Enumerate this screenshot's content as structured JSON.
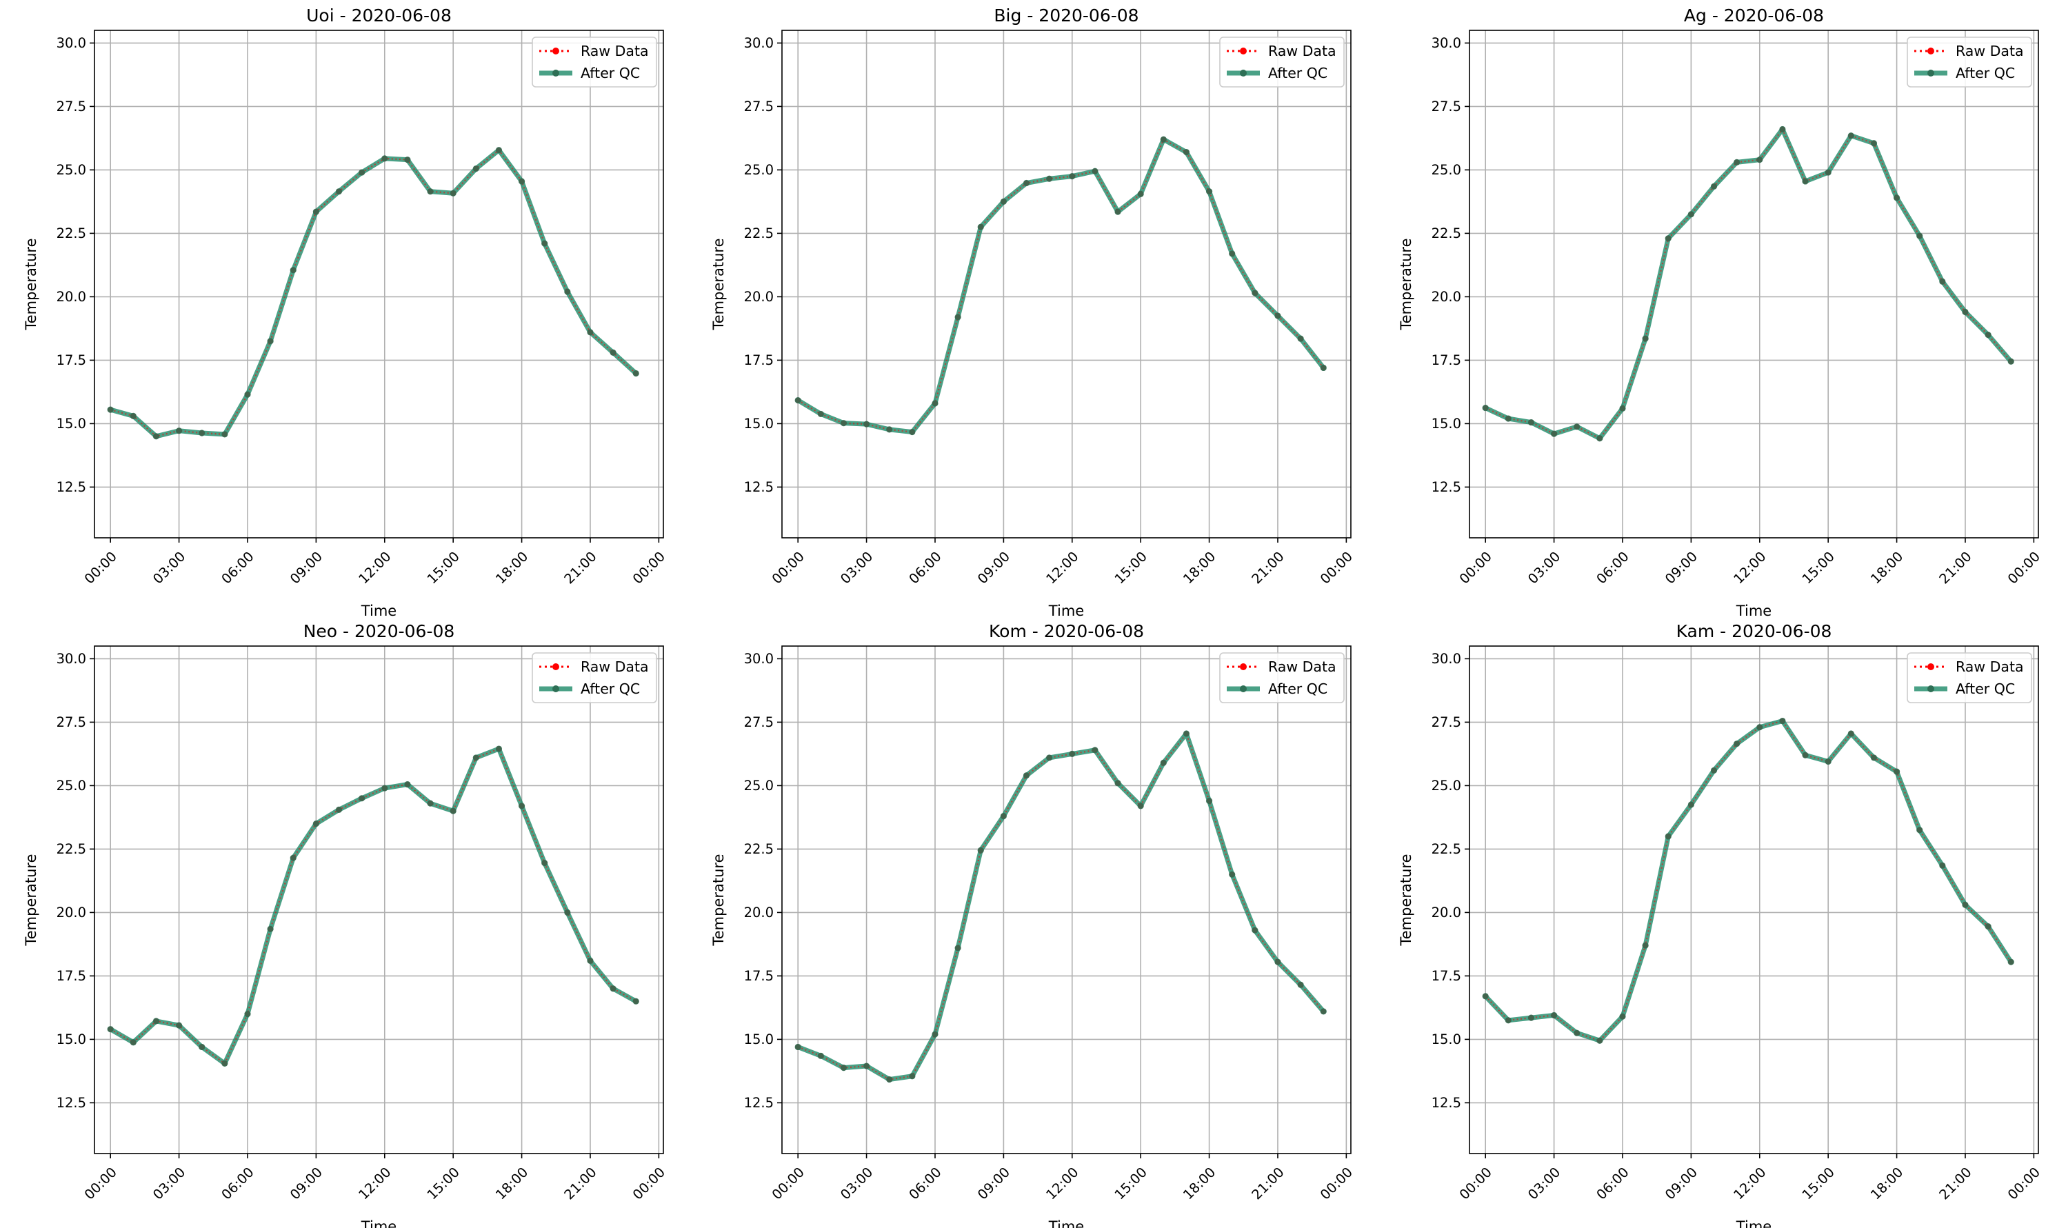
{
  "legend": {
    "raw_label": "Raw Data",
    "qc_label": "After QC",
    "placement": "upper-right"
  },
  "colors": {
    "raw": "#ff0000",
    "qc": "#1d8a68",
    "grid": "#b0b0b0",
    "marker": "#2e6f55"
  },
  "chart_data": [
    {
      "type": "line",
      "title": "Uoi - 2020-06-08",
      "xlabel": "Time",
      "ylabel": "Temperature",
      "ylim": [
        10.5,
        30.5
      ],
      "xlim_hours": [
        -0.7,
        24.2
      ],
      "xtick_labels": [
        "00:00",
        "03:00",
        "06:00",
        "09:00",
        "12:00",
        "15:00",
        "18:00",
        "21:00",
        "00:00"
      ],
      "ytick_labels": [
        "12.5",
        "15.0",
        "17.5",
        "20.0",
        "22.5",
        "25.0",
        "27.5",
        "30.0"
      ],
      "grid": true,
      "x": [
        "00:00",
        "01:00",
        "02:00",
        "03:00",
        "04:00",
        "05:00",
        "06:00",
        "07:00",
        "08:00",
        "09:00",
        "10:00",
        "11:00",
        "12:00",
        "13:00",
        "14:00",
        "15:00",
        "16:00",
        "17:00",
        "18:00",
        "19:00",
        "20:00",
        "21:00",
        "22:00",
        "23:00"
      ],
      "series": [
        {
          "name": "Raw Data",
          "values": [
            15.55,
            15.3,
            14.5,
            14.72,
            14.63,
            14.58,
            16.15,
            18.25,
            21.05,
            23.35,
            24.15,
            24.9,
            25.45,
            25.4,
            24.15,
            24.08,
            25.05,
            25.78,
            24.55,
            22.1,
            20.2,
            18.6,
            17.8,
            16.98
          ]
        },
        {
          "name": "After QC",
          "values": [
            15.55,
            15.3,
            14.5,
            14.72,
            14.63,
            14.58,
            16.15,
            18.25,
            21.05,
            23.35,
            24.15,
            24.9,
            25.45,
            25.4,
            24.15,
            24.08,
            25.05,
            25.78,
            24.55,
            22.1,
            20.2,
            18.6,
            17.8,
            16.98
          ]
        }
      ]
    },
    {
      "type": "line",
      "title": "Big - 2020-06-08",
      "xlabel": "Time",
      "ylabel": "Temperature",
      "ylim": [
        10.5,
        30.5
      ],
      "xlim_hours": [
        -0.7,
        24.2
      ],
      "xtick_labels": [
        "00:00",
        "03:00",
        "06:00",
        "09:00",
        "12:00",
        "15:00",
        "18:00",
        "21:00",
        "00:00"
      ],
      "ytick_labels": [
        "12.5",
        "15.0",
        "17.5",
        "20.0",
        "22.5",
        "25.0",
        "27.5",
        "30.0"
      ],
      "grid": true,
      "x": [
        "00:00",
        "01:00",
        "02:00",
        "03:00",
        "04:00",
        "05:00",
        "06:00",
        "07:00",
        "08:00",
        "09:00",
        "10:00",
        "11:00",
        "12:00",
        "13:00",
        "14:00",
        "15:00",
        "16:00",
        "17:00",
        "18:00",
        "19:00",
        "20:00",
        "21:00",
        "22:00",
        "23:00"
      ],
      "series": [
        {
          "name": "Raw Data",
          "values": [
            15.92,
            15.38,
            15.02,
            14.98,
            14.77,
            14.67,
            15.8,
            19.2,
            22.75,
            23.75,
            24.48,
            24.65,
            24.75,
            24.95,
            23.35,
            24.05,
            26.2,
            25.7,
            24.15,
            21.7,
            20.15,
            19.25,
            18.35,
            17.2
          ]
        },
        {
          "name": "After QC",
          "values": [
            15.92,
            15.38,
            15.02,
            14.98,
            14.77,
            14.67,
            15.8,
            19.2,
            22.75,
            23.75,
            24.48,
            24.65,
            24.75,
            24.95,
            23.35,
            24.05,
            26.2,
            25.7,
            24.15,
            21.7,
            20.15,
            19.25,
            18.35,
            17.2
          ]
        }
      ]
    },
    {
      "type": "line",
      "title": "Ag - 2020-06-08",
      "xlabel": "Time",
      "ylabel": "Temperature",
      "ylim": [
        10.5,
        30.5
      ],
      "xlim_hours": [
        -0.7,
        24.2
      ],
      "xtick_labels": [
        "00:00",
        "03:00",
        "06:00",
        "09:00",
        "12:00",
        "15:00",
        "18:00",
        "21:00",
        "00:00"
      ],
      "ytick_labels": [
        "12.5",
        "15.0",
        "17.5",
        "20.0",
        "22.5",
        "25.0",
        "27.5",
        "30.0"
      ],
      "grid": true,
      "x": [
        "00:00",
        "01:00",
        "02:00",
        "03:00",
        "04:00",
        "05:00",
        "06:00",
        "07:00",
        "08:00",
        "09:00",
        "10:00",
        "11:00",
        "12:00",
        "13:00",
        "14:00",
        "15:00",
        "16:00",
        "17:00",
        "18:00",
        "19:00",
        "20:00",
        "21:00",
        "22:00",
        "23:00"
      ],
      "series": [
        {
          "name": "Raw Data",
          "values": [
            15.62,
            15.2,
            15.05,
            14.6,
            14.88,
            14.42,
            15.6,
            18.35,
            22.3,
            23.25,
            24.35,
            25.3,
            25.4,
            26.6,
            24.55,
            24.9,
            26.35,
            26.05,
            23.9,
            22.4,
            20.6,
            19.4,
            18.5,
            17.45
          ]
        },
        {
          "name": "After QC",
          "values": [
            15.62,
            15.2,
            15.05,
            14.6,
            14.88,
            14.42,
            15.6,
            18.35,
            22.3,
            23.25,
            24.35,
            25.3,
            25.4,
            26.6,
            24.55,
            24.9,
            26.35,
            26.05,
            23.9,
            22.4,
            20.6,
            19.4,
            18.5,
            17.45
          ]
        }
      ]
    },
    {
      "type": "line",
      "title": "Neo - 2020-06-08",
      "xlabel": "Time",
      "ylabel": "Temperature",
      "ylim": [
        10.5,
        30.5
      ],
      "xlim_hours": [
        -0.7,
        24.2
      ],
      "xtick_labels": [
        "00:00",
        "03:00",
        "06:00",
        "09:00",
        "12:00",
        "15:00",
        "18:00",
        "21:00",
        "00:00"
      ],
      "ytick_labels": [
        "12.5",
        "15.0",
        "17.5",
        "20.0",
        "22.5",
        "25.0",
        "27.5",
        "30.0"
      ],
      "grid": true,
      "x": [
        "00:00",
        "01:00",
        "02:00",
        "03:00",
        "04:00",
        "05:00",
        "06:00",
        "07:00",
        "08:00",
        "09:00",
        "10:00",
        "11:00",
        "12:00",
        "13:00",
        "14:00",
        "15:00",
        "16:00",
        "17:00",
        "18:00",
        "19:00",
        "20:00",
        "21:00",
        "22:00",
        "23:00"
      ],
      "series": [
        {
          "name": "Raw Data",
          "values": [
            15.4,
            14.88,
            15.72,
            15.55,
            14.7,
            14.05,
            16.0,
            19.35,
            22.15,
            23.5,
            24.05,
            24.5,
            24.9,
            25.05,
            24.3,
            24.0,
            26.1,
            26.45,
            24.2,
            21.95,
            20.0,
            18.1,
            17.0,
            16.5
          ]
        },
        {
          "name": "After QC",
          "values": [
            15.4,
            14.88,
            15.72,
            15.55,
            14.7,
            14.05,
            16.0,
            19.35,
            22.15,
            23.5,
            24.05,
            24.5,
            24.9,
            25.05,
            24.3,
            24.0,
            26.1,
            26.45,
            24.2,
            21.95,
            20.0,
            18.1,
            17.0,
            16.5
          ]
        }
      ]
    },
    {
      "type": "line",
      "title": "Kom - 2020-06-08",
      "xlabel": "Time",
      "ylabel": "Temperature",
      "ylim": [
        10.5,
        30.5
      ],
      "xlim_hours": [
        -0.7,
        24.2
      ],
      "xtick_labels": [
        "00:00",
        "03:00",
        "06:00",
        "09:00",
        "12:00",
        "15:00",
        "18:00",
        "21:00",
        "00:00"
      ],
      "ytick_labels": [
        "12.5",
        "15.0",
        "17.5",
        "20.0",
        "22.5",
        "25.0",
        "27.5",
        "30.0"
      ],
      "grid": true,
      "x": [
        "00:00",
        "01:00",
        "02:00",
        "03:00",
        "04:00",
        "05:00",
        "06:00",
        "07:00",
        "08:00",
        "09:00",
        "10:00",
        "11:00",
        "12:00",
        "13:00",
        "14:00",
        "15:00",
        "16:00",
        "17:00",
        "18:00",
        "19:00",
        "20:00",
        "21:00",
        "22:00",
        "23:00"
      ],
      "series": [
        {
          "name": "Raw Data",
          "values": [
            14.7,
            14.35,
            13.88,
            13.95,
            13.42,
            13.55,
            15.2,
            18.6,
            22.45,
            23.8,
            25.4,
            26.1,
            26.25,
            26.4,
            25.1,
            24.2,
            25.9,
            27.05,
            24.4,
            21.5,
            19.3,
            18.05,
            17.15,
            16.1
          ]
        },
        {
          "name": "After QC",
          "values": [
            14.7,
            14.35,
            13.88,
            13.95,
            13.42,
            13.55,
            15.2,
            18.6,
            22.45,
            23.8,
            25.4,
            26.1,
            26.25,
            26.4,
            25.1,
            24.2,
            25.9,
            27.05,
            24.4,
            21.5,
            19.3,
            18.05,
            17.15,
            16.1
          ]
        }
      ]
    },
    {
      "type": "line",
      "title": "Kam - 2020-06-08",
      "xlabel": "Time",
      "ylabel": "Temperature",
      "ylim": [
        10.5,
        30.5
      ],
      "xlim_hours": [
        -0.7,
        24.2
      ],
      "xtick_labels": [
        "00:00",
        "03:00",
        "06:00",
        "09:00",
        "12:00",
        "15:00",
        "18:00",
        "21:00",
        "00:00"
      ],
      "ytick_labels": [
        "12.5",
        "15.0",
        "17.5",
        "20.0",
        "22.5",
        "25.0",
        "27.5",
        "30.0"
      ],
      "grid": true,
      "x": [
        "00:00",
        "01:00",
        "02:00",
        "03:00",
        "04:00",
        "05:00",
        "06:00",
        "07:00",
        "08:00",
        "09:00",
        "10:00",
        "11:00",
        "12:00",
        "13:00",
        "14:00",
        "15:00",
        "16:00",
        "17:00",
        "18:00",
        "19:00",
        "20:00",
        "21:00",
        "22:00",
        "23:00"
      ],
      "series": [
        {
          "name": "Raw Data",
          "values": [
            16.7,
            15.75,
            15.85,
            15.95,
            15.25,
            14.95,
            15.9,
            18.7,
            23.0,
            24.25,
            25.6,
            26.65,
            27.3,
            27.55,
            26.2,
            25.95,
            27.05,
            26.1,
            25.55,
            23.25,
            21.85,
            20.3,
            19.45,
            18.05
          ]
        },
        {
          "name": "After QC",
          "values": [
            16.7,
            15.75,
            15.85,
            15.95,
            15.25,
            14.95,
            15.9,
            18.7,
            23.0,
            24.25,
            25.6,
            26.65,
            27.3,
            27.55,
            26.2,
            25.95,
            27.05,
            26.1,
            25.55,
            23.25,
            21.85,
            20.3,
            19.45,
            18.05
          ]
        }
      ]
    }
  ]
}
